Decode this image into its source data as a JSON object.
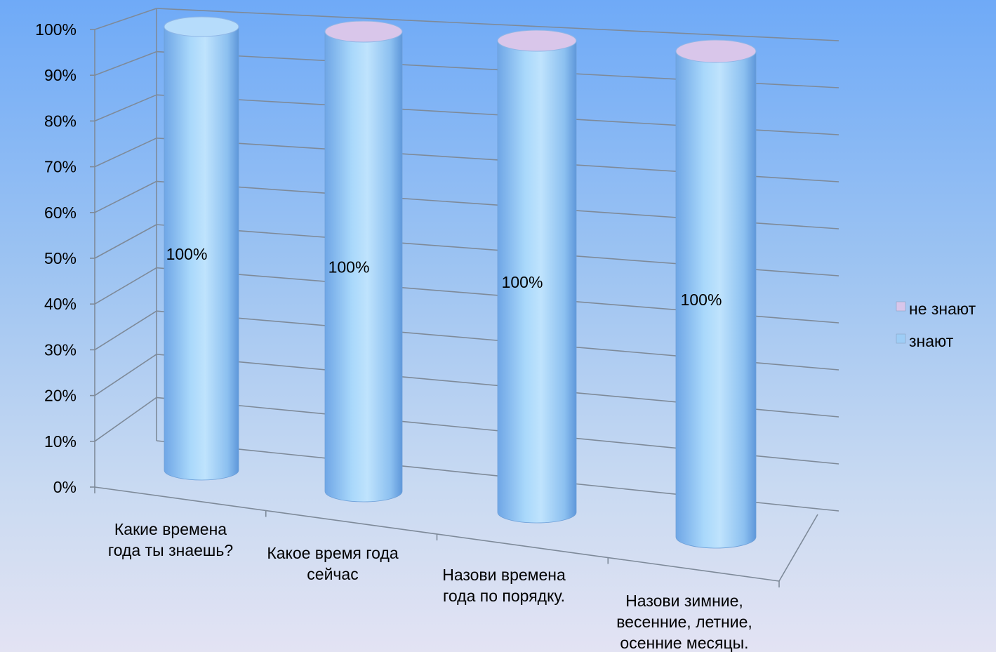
{
  "chart_data": {
    "type": "bar",
    "shape": "3d-cylinder",
    "stacked": "percent",
    "categories": [
      [
        "Какие времена",
        "года ты знаешь?"
      ],
      [
        "Какое время года",
        "сейчас"
      ],
      [
        "Назови времена",
        "года по порядку."
      ],
      [
        "Назови зимние,",
        "весенние, летние,",
        "осенние месяцы."
      ]
    ],
    "series": [
      {
        "name": "знают",
        "values": [
          100,
          100,
          100,
          100
        ],
        "labels": [
          "100%",
          "100%",
          "100%",
          "100%"
        ],
        "color": "#9ecdf6"
      },
      {
        "name": "не знают",
        "values": [
          0,
          0,
          0,
          0
        ],
        "color": "#d9c6ea"
      }
    ],
    "yticks": [
      "0%",
      "10%",
      "20%",
      "30%",
      "40%",
      "50%",
      "60%",
      "70%",
      "80%",
      "90%",
      "100%"
    ],
    "ylim": [
      0,
      100
    ],
    "grid": true,
    "legend_position": "right"
  }
}
